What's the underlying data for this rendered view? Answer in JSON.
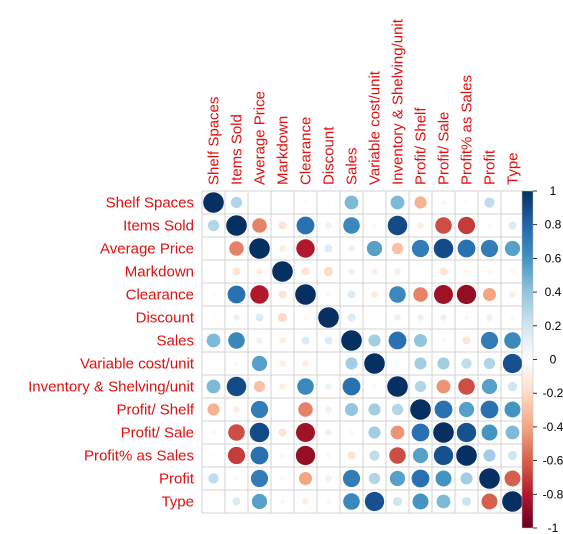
{
  "chart_data": {
    "type": "heatmap",
    "subtype": "correlation-matrix-circles",
    "variables": [
      "Shelf Spaces",
      "Items Sold",
      "Average Price",
      "Markdown",
      "Clearance",
      "Discount",
      "Sales",
      "Variable cost/unit",
      "Inventory & Shelving/unit",
      "Profit/ Shelf",
      "Profit/ Sale",
      "Profit% as Sales",
      "Profit",
      "Type"
    ],
    "matrix": [
      [
        1.0,
        0.3,
        0.02,
        -0.02,
        0.03,
        -0.03,
        0.45,
        0.0,
        0.45,
        -0.35,
        0.05,
        0.03,
        0.25,
        0.02
      ],
      [
        0.3,
        1.0,
        -0.5,
        -0.15,
        0.75,
        0.1,
        0.65,
        0.05,
        0.9,
        -0.1,
        -0.65,
        -0.7,
        0.05,
        0.15
      ],
      [
        0.02,
        -0.5,
        1.0,
        -0.1,
        -0.8,
        0.15,
        0.1,
        0.55,
        -0.3,
        0.7,
        0.9,
        0.75,
        0.7,
        0.55
      ],
      [
        -0.02,
        -0.15,
        -0.1,
        1.0,
        -0.15,
        -0.2,
        -0.1,
        -0.1,
        -0.1,
        -0.02,
        -0.15,
        -0.05,
        -0.05,
        -0.05
      ],
      [
        0.03,
        0.75,
        -0.8,
        -0.15,
        1.0,
        -0.05,
        0.15,
        -0.1,
        0.65,
        -0.5,
        -0.85,
        -0.88,
        -0.4,
        -0.1
      ],
      [
        -0.03,
        0.1,
        0.15,
        -0.2,
        -0.05,
        1.0,
        0.15,
        0.02,
        0.1,
        0.1,
        0.1,
        0.05,
        0.1,
        0.05
      ],
      [
        0.45,
        0.65,
        0.1,
        -0.1,
        0.15,
        0.15,
        1.0,
        0.35,
        0.75,
        0.4,
        0.05,
        -0.15,
        0.7,
        0.65
      ],
      [
        0.0,
        0.05,
        0.55,
        -0.1,
        -0.1,
        0.02,
        0.35,
        1.0,
        0.05,
        0.35,
        0.35,
        0.25,
        0.3,
        0.88
      ],
      [
        0.45,
        0.9,
        -0.3,
        -0.1,
        0.65,
        0.1,
        0.75,
        0.05,
        1.0,
        0.3,
        -0.45,
        -0.65,
        0.55,
        0.2
      ],
      [
        -0.35,
        -0.1,
        0.7,
        -0.02,
        -0.5,
        0.1,
        0.4,
        0.35,
        0.3,
        1.0,
        0.75,
        0.55,
        0.75,
        0.6
      ],
      [
        0.05,
        -0.65,
        0.9,
        -0.15,
        -0.85,
        0.1,
        0.05,
        0.35,
        -0.45,
        0.75,
        1.0,
        0.88,
        0.6,
        0.45
      ],
      [
        0.03,
        -0.7,
        0.75,
        -0.05,
        -0.88,
        0.05,
        -0.15,
        0.25,
        -0.65,
        0.55,
        0.88,
        1.0,
        0.35,
        0.2
      ],
      [
        0.25,
        0.05,
        0.7,
        -0.05,
        -0.4,
        0.1,
        0.7,
        0.3,
        0.55,
        0.75,
        0.6,
        0.35,
        1.0,
        -0.6
      ],
      [
        0.02,
        0.15,
        0.55,
        -0.05,
        -0.1,
        0.05,
        0.65,
        0.88,
        0.2,
        0.6,
        0.45,
        0.2,
        -0.6,
        1.0
      ]
    ],
    "color_scale": {
      "range": [
        -1,
        1
      ],
      "ticks": [
        "1",
        "0.8",
        "0.6",
        "0.4",
        "0.2",
        "0",
        "-0.2",
        "-0.4",
        "-0.6",
        "-0.8",
        "-1"
      ],
      "tick_values": [
        1,
        0.8,
        0.6,
        0.4,
        0.2,
        0,
        -0.2,
        -0.4,
        -0.6,
        -0.8,
        -1
      ],
      "stops": [
        "#67001F",
        "#B2182B",
        "#D6604D",
        "#F4A582",
        "#FDDBC7",
        "#FFFFFF",
        "#D1E5F0",
        "#92C5DE",
        "#4393C3",
        "#2166AC",
        "#053061"
      ]
    },
    "legend_position": "right",
    "label_color": "#e01010",
    "grid": true,
    "title": "",
    "xlabel": "",
    "ylabel": ""
  }
}
